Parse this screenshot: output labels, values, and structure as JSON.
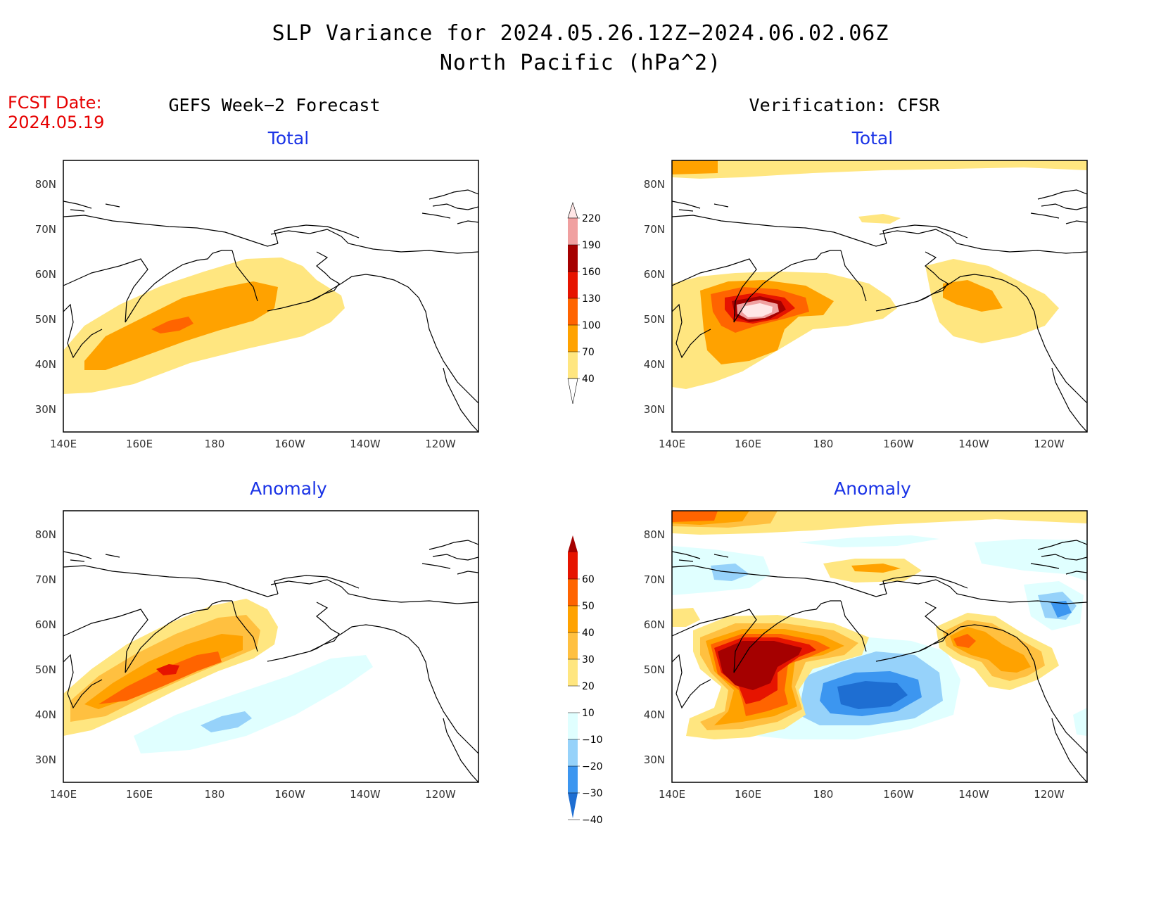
{
  "header": {
    "title_line1": "SLP Variance for 2024.05.26.12Z−2024.06.02.06Z",
    "title_line2": "North Pacific (hPa^2)",
    "fcst_label": "FCST Date:",
    "fcst_date": "2024.05.19"
  },
  "columns": {
    "left": "GEFS Week−2 Forecast",
    "right": "Verification: CFSR"
  },
  "panels": {
    "top_left": "Total",
    "top_right": "Total",
    "bottom_left": "Anomaly",
    "bottom_right": "Anomaly"
  },
  "axes": {
    "lat_labels": [
      "80N",
      "70N",
      "60N",
      "50N",
      "40N",
      "30N"
    ],
    "lon_labels": [
      "140E",
      "160E",
      "180",
      "160W",
      "140W",
      "120W"
    ]
  },
  "colorbars": {
    "total": {
      "levels": [
        "40",
        "70",
        "100",
        "130",
        "160",
        "190",
        "220"
      ],
      "colors": [
        "#ffe680",
        "#ffa200",
        "#ff6400",
        "#e61400",
        "#a50000",
        "#f0a0a0",
        "#ffe6e6"
      ]
    },
    "anomaly": {
      "levels": [
        "60",
        "50",
        "40",
        "30",
        "20",
        "10",
        "−10",
        "−20",
        "−30",
        "−40"
      ],
      "colors": [
        "#a50000",
        "#e61400",
        "#ff6400",
        "#ffa200",
        "#ffc040",
        "#ffe680",
        "#ffffff",
        "#e0ffff",
        "#96d2fa",
        "#3c96f0",
        "#1e6ed2"
      ]
    }
  }
}
